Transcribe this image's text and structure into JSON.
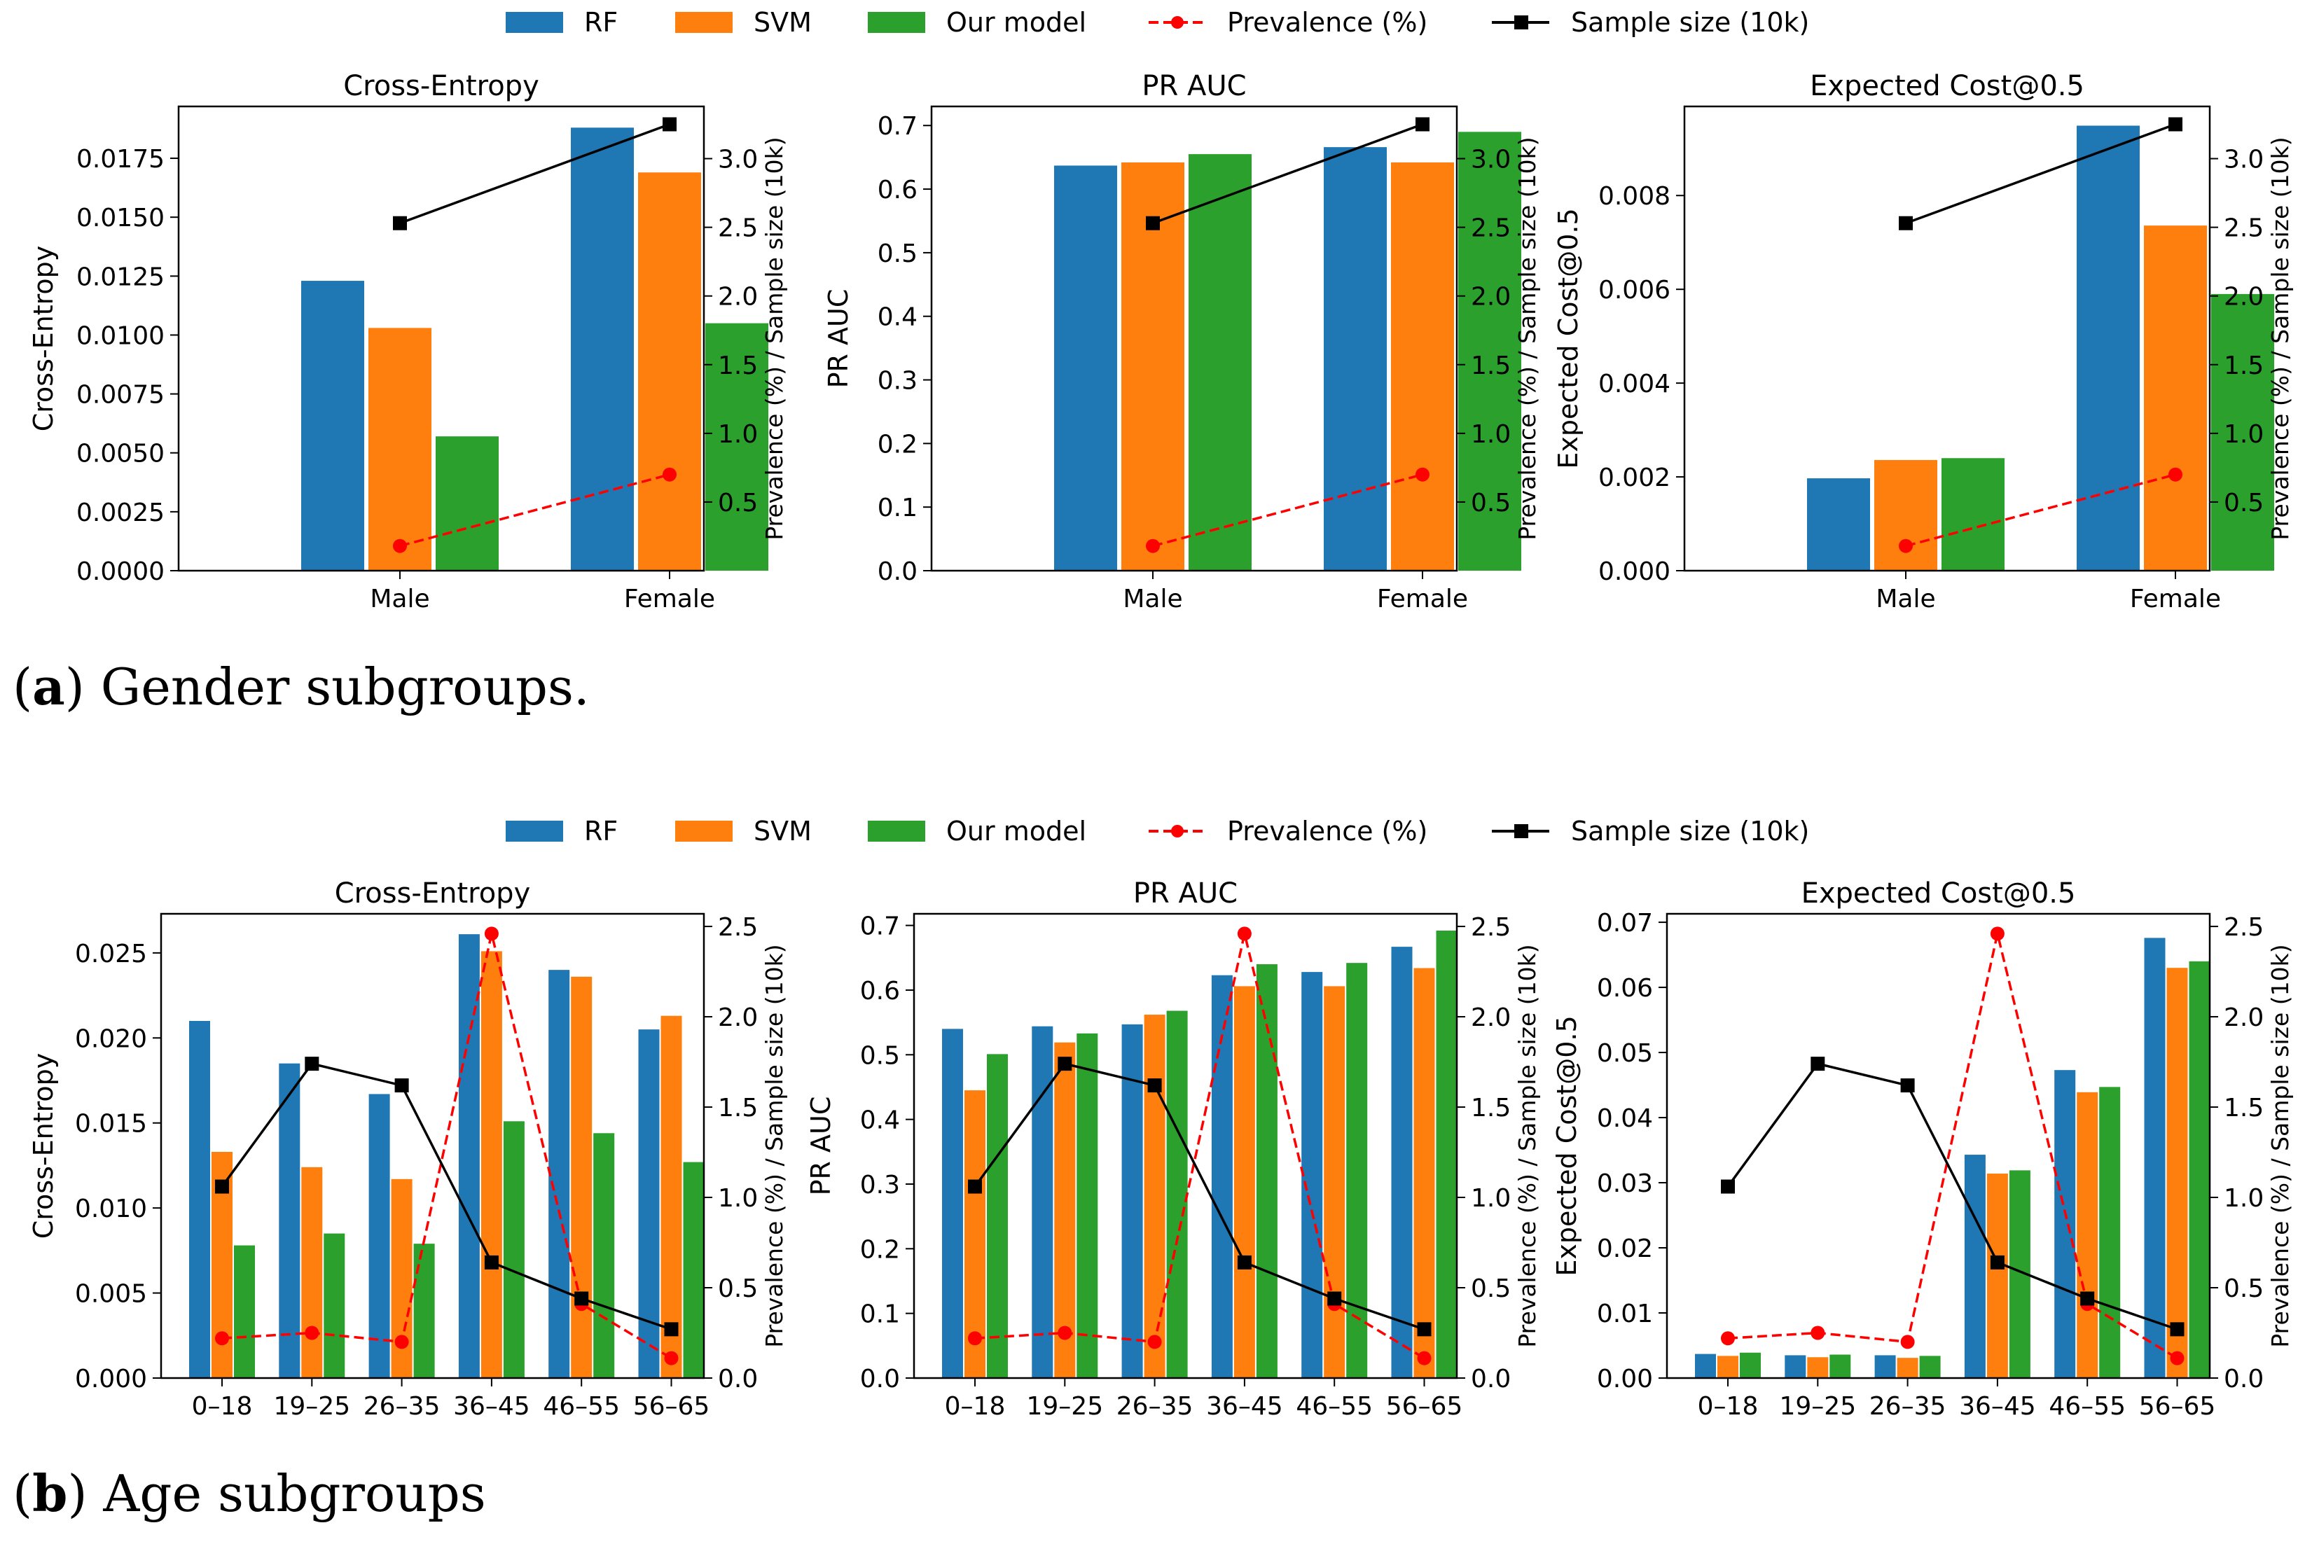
{
  "legend": {
    "rf": "RF",
    "svm": "SVM",
    "ours": "Our model",
    "prevalence": "Prevalence (%)",
    "sample": "Sample size (10k)"
  },
  "colors": {
    "rf": "#1f77b4",
    "svm": "#ff7f0e",
    "ours": "#2ca02c",
    "prevalence": "#ff0000",
    "sample": "#000000"
  },
  "right_axis_label": "Prevalence (%) / Sample size (10k)",
  "captions": {
    "a": {
      "label": "a",
      "text": "Gender subgroups."
    },
    "b": {
      "label": "b",
      "text": "Age subgroups"
    }
  },
  "chart_data": [
    {
      "type": "bar",
      "group": "gender",
      "title": "Cross-Entropy",
      "ylabel": "Cross-Entropy",
      "categories": [
        "Male",
        "Female"
      ],
      "ylim": [
        0,
        0.0197
      ],
      "yticks": [
        "0.0000",
        "0.0025",
        "0.0050",
        "0.0075",
        "0.0100",
        "0.0125",
        "0.0150",
        "0.0175"
      ],
      "series": [
        {
          "name": "RF",
          "values": [
            0.0123,
            0.0188
          ]
        },
        {
          "name": "SVM",
          "values": [
            0.0103,
            0.0169
          ]
        },
        {
          "name": "Our model",
          "values": [
            0.0057,
            0.0105
          ]
        }
      ],
      "y2lim": [
        0,
        3.38
      ],
      "y2ticks": [
        "0.5",
        "1.0",
        "1.5",
        "2.0",
        "2.5",
        "3.0"
      ],
      "prevalence": [
        0.18,
        0.7
      ],
      "sample_size": [
        2.53,
        3.25
      ]
    },
    {
      "type": "bar",
      "group": "gender",
      "title": "PR AUC",
      "ylabel": "PR AUC",
      "categories": [
        "Male",
        "Female"
      ],
      "ylim": [
        0,
        0.73
      ],
      "yticks": [
        "0.0",
        "0.1",
        "0.2",
        "0.3",
        "0.4",
        "0.5",
        "0.6",
        "0.7"
      ],
      "series": [
        {
          "name": "RF",
          "values": [
            0.637,
            0.666
          ]
        },
        {
          "name": "SVM",
          "values": [
            0.642,
            0.642
          ]
        },
        {
          "name": "Our model",
          "values": [
            0.655,
            0.69
          ]
        }
      ],
      "y2lim": [
        0,
        3.38
      ],
      "y2ticks": [
        "0.5",
        "1.0",
        "1.5",
        "2.0",
        "2.5",
        "3.0"
      ],
      "prevalence": [
        0.18,
        0.7
      ],
      "sample_size": [
        2.53,
        3.25
      ]
    },
    {
      "type": "bar",
      "group": "gender",
      "title": "Expected Cost@0.5",
      "ylabel": "Expected Cost@0.5",
      "categories": [
        "Male",
        "Female"
      ],
      "ylim": [
        0,
        0.0099
      ],
      "yticks": [
        "0.000",
        "0.002",
        "0.004",
        "0.006",
        "0.008"
      ],
      "series": [
        {
          "name": "RF",
          "values": [
            0.00197,
            0.00949
          ]
        },
        {
          "name": "SVM",
          "values": [
            0.00236,
            0.00736
          ]
        },
        {
          "name": "Our model",
          "values": [
            0.0024,
            0.0059
          ]
        }
      ],
      "y2lim": [
        0,
        3.38
      ],
      "y2ticks": [
        "0.5",
        "1.0",
        "1.5",
        "2.0",
        "2.5",
        "3.0"
      ],
      "prevalence": [
        0.18,
        0.7
      ],
      "sample_size": [
        2.53,
        3.25
      ]
    },
    {
      "type": "bar",
      "group": "age",
      "title": "Cross-Entropy",
      "ylabel": "Cross-Entropy",
      "categories": [
        "0–18",
        "19–25",
        "26–35",
        "36–45",
        "46–55",
        "56–65"
      ],
      "ylim": [
        0,
        0.0273
      ],
      "yticks": [
        "0.000",
        "0.005",
        "0.010",
        "0.015",
        "0.020",
        "0.025"
      ],
      "series": [
        {
          "name": "RF",
          "values": [
            0.021,
            0.0185,
            0.0167,
            0.0261,
            0.024,
            0.0205
          ]
        },
        {
          "name": "SVM",
          "values": [
            0.0133,
            0.0124,
            0.0117,
            0.0251,
            0.0236,
            0.0213
          ]
        },
        {
          "name": "Our model",
          "values": [
            0.0078,
            0.0085,
            0.0079,
            0.0151,
            0.0144,
            0.0127
          ]
        }
      ],
      "y2lim": [
        0,
        2.57
      ],
      "y2ticks": [
        "0.0",
        "0.5",
        "1.0",
        "1.5",
        "2.0",
        "2.5"
      ],
      "prevalence": [
        0.22,
        0.25,
        0.2,
        2.46,
        0.41,
        0.11
      ],
      "sample_size": [
        1.06,
        1.74,
        1.62,
        0.64,
        0.44,
        0.27
      ]
    },
    {
      "type": "bar",
      "group": "age",
      "title": "PR AUC",
      "ylabel": "PR AUC",
      "categories": [
        "0–18",
        "19–25",
        "26–35",
        "36–45",
        "46–55",
        "56–65"
      ],
      "ylim": [
        0,
        0.718
      ],
      "yticks": [
        "0.0",
        "0.1",
        "0.2",
        "0.3",
        "0.4",
        "0.5",
        "0.6",
        "0.7"
      ],
      "series": [
        {
          "name": "RF",
          "values": [
            0.54,
            0.544,
            0.547,
            0.623,
            0.628,
            0.667
          ]
        },
        {
          "name": "SVM",
          "values": [
            0.445,
            0.519,
            0.562,
            0.606,
            0.606,
            0.634
          ]
        },
        {
          "name": "Our model",
          "values": [
            0.501,
            0.533,
            0.568,
            0.64,
            0.642,
            0.692
          ]
        }
      ],
      "y2lim": [
        0,
        2.57
      ],
      "y2ticks": [
        "0.0",
        "0.5",
        "1.0",
        "1.5",
        "2.0",
        "2.5"
      ],
      "prevalence": [
        0.22,
        0.25,
        0.2,
        2.46,
        0.41,
        0.11
      ],
      "sample_size": [
        1.06,
        1.74,
        1.62,
        0.64,
        0.44,
        0.27
      ]
    },
    {
      "type": "bar",
      "group": "age",
      "title": "Expected Cost@0.5",
      "ylabel": "Expected Cost@0.5",
      "categories": [
        "0–18",
        "19–25",
        "26–35",
        "36–45",
        "46–55",
        "56–65"
      ],
      "ylim": [
        0,
        0.0713
      ],
      "yticks": [
        "0.00",
        "0.01",
        "0.02",
        "0.03",
        "0.04",
        "0.05",
        "0.06",
        "0.07"
      ],
      "series": [
        {
          "name": "RF",
          "values": [
            0.0037,
            0.0035,
            0.0035,
            0.0343,
            0.0473,
            0.0676
          ]
        },
        {
          "name": "SVM",
          "values": [
            0.0034,
            0.0032,
            0.0031,
            0.0314,
            0.0439,
            0.063
          ]
        },
        {
          "name": "Our model",
          "values": [
            0.0039,
            0.0036,
            0.0034,
            0.0319,
            0.0447,
            0.064
          ]
        }
      ],
      "y2lim": [
        0,
        2.57
      ],
      "y2ticks": [
        "0.0",
        "0.5",
        "1.0",
        "1.5",
        "2.0",
        "2.5"
      ],
      "prevalence": [
        0.22,
        0.25,
        0.2,
        2.46,
        0.41,
        0.11
      ],
      "sample_size": [
        1.06,
        1.74,
        1.62,
        0.64,
        0.44,
        0.27
      ]
    }
  ]
}
